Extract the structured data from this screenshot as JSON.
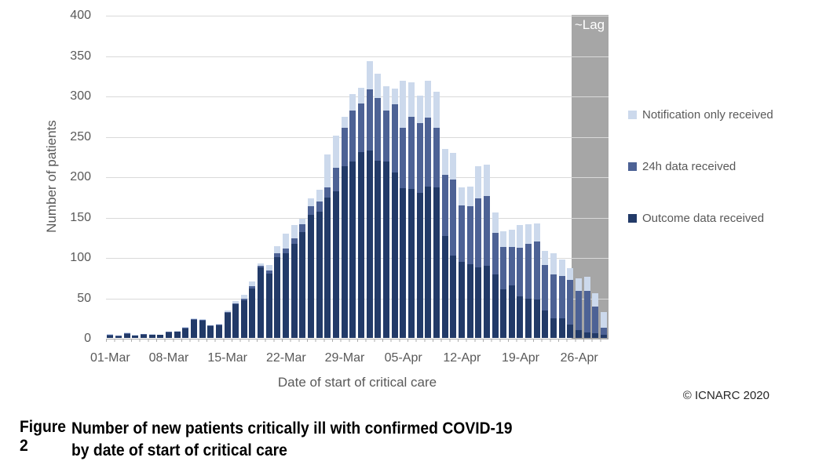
{
  "chart_data": {
    "type": "bar",
    "stacked": true,
    "title": "",
    "xlabel": "Date of start of critical care",
    "ylabel": "Number of patients",
    "ylim": [
      0,
      400
    ],
    "yticks": [
      0,
      50,
      100,
      150,
      200,
      250,
      300,
      350,
      400
    ],
    "xtick_label_every": 7,
    "grid": "horizontal",
    "legend_position": "right",
    "lag_annotation": {
      "label": "~Lag",
      "start_index": 56
    },
    "categories": [
      "01-Mar",
      "02-Mar",
      "03-Mar",
      "04-Mar",
      "05-Mar",
      "06-Mar",
      "07-Mar",
      "08-Mar",
      "09-Mar",
      "10-Mar",
      "11-Mar",
      "12-Mar",
      "13-Mar",
      "14-Mar",
      "15-Mar",
      "16-Mar",
      "17-Mar",
      "18-Mar",
      "19-Mar",
      "20-Mar",
      "21-Mar",
      "22-Mar",
      "23-Mar",
      "24-Mar",
      "25-Mar",
      "26-Mar",
      "27-Mar",
      "28-Mar",
      "29-Mar",
      "30-Mar",
      "31-Mar",
      "01-Apr",
      "02-Apr",
      "03-Apr",
      "04-Apr",
      "05-Apr",
      "06-Apr",
      "07-Apr",
      "08-Apr",
      "09-Apr",
      "10-Apr",
      "11-Apr",
      "12-Apr",
      "13-Apr",
      "14-Apr",
      "15-Apr",
      "16-Apr",
      "17-Apr",
      "18-Apr",
      "19-Apr",
      "20-Apr",
      "21-Apr",
      "22-Apr",
      "23-Apr",
      "24-Apr",
      "25-Apr",
      "26-Apr",
      "27-Apr",
      "28-Apr",
      "29-Apr"
    ],
    "series": [
      {
        "name": "Outcome data received",
        "color": "#223a68",
        "values": [
          3,
          2,
          5,
          3,
          4,
          4,
          4,
          7,
          8,
          12,
          22,
          21,
          15,
          16,
          31,
          42,
          47,
          61,
          87,
          80,
          100,
          105,
          117,
          131,
          152,
          156,
          174,
          182,
          213,
          218,
          230,
          232,
          219,
          218,
          205,
          185,
          184,
          180,
          187,
          186,
          126,
          102,
          94,
          91,
          87,
          89,
          79,
          60,
          65,
          51,
          49,
          48,
          34,
          24,
          24,
          17,
          10,
          7,
          6,
          4
        ]
      },
      {
        "name": "24h data received",
        "color": "#4d6295",
        "values": [
          1,
          1,
          1,
          0,
          1,
          0,
          0,
          1,
          0,
          1,
          1,
          1,
          1,
          1,
          1,
          1,
          2,
          3,
          2,
          4,
          5,
          6,
          6,
          10,
          11,
          13,
          12,
          29,
          47,
          64,
          60,
          76,
          78,
          64,
          84,
          75,
          90,
          86,
          86,
          74,
          76,
          94,
          70,
          72,
          86,
          87,
          51,
          53,
          48,
          61,
          68,
          71,
          56,
          55,
          53,
          55,
          48,
          51,
          33,
          9
        ]
      },
      {
        "name": "Notification only received",
        "color": "#ccd9ec",
        "values": [
          1,
          0,
          1,
          1,
          0,
          1,
          0,
          0,
          1,
          1,
          1,
          1,
          0,
          1,
          2,
          3,
          4,
          6,
          3,
          6,
          9,
          18,
          17,
          7,
          10,
          15,
          41,
          40,
          14,
          20,
          20,
          35,
          30,
          30,
          20,
          58,
          43,
          34,
          45,
          45,
          32,
          33,
          22,
          24,
          40,
          39,
          25,
          19,
          21,
          28,
          24,
          23,
          18,
          26,
          20,
          14,
          16,
          18,
          16,
          19
        ]
      }
    ],
    "legend": [
      {
        "label": "Notification only received",
        "color": "#ccd9ec"
      },
      {
        "label": "24h data received",
        "color": "#4d6295"
      },
      {
        "label": "Outcome data received",
        "color": "#223a68"
      }
    ]
  },
  "axes": {
    "y_title": "Number of patients",
    "x_title": "Date of start of critical care"
  },
  "annotations": {
    "lag_label": "~Lag",
    "copyright": "© ICNARC 2020"
  },
  "caption": {
    "figure_number": "Figure 2",
    "line1": "Number of new patients critically ill with confirmed COVID-19",
    "line2": "by date of start of critical care"
  }
}
